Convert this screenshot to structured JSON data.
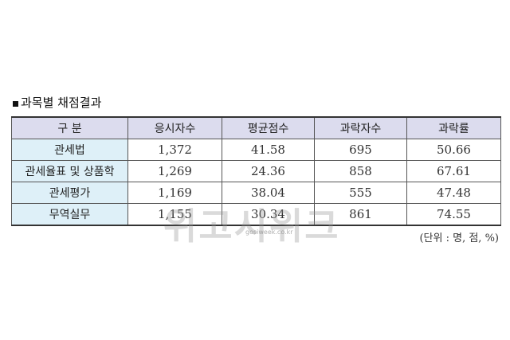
{
  "title": "과목별 채점결과",
  "table": {
    "headers": [
      "구 분",
      "응시자수",
      "평균점수",
      "과락자수",
      "과락률"
    ],
    "rows": [
      [
        "관세법",
        "1,372",
        "41.58",
        "695",
        "50.66"
      ],
      [
        "관세율표 및 상품학",
        "1,269",
        "24.36",
        "858",
        "67.61"
      ],
      [
        "관세평가",
        "1,169",
        "38.04",
        "555",
        "47.48"
      ],
      [
        "무역실무",
        "1,155",
        "30.34",
        "861",
        "74.55"
      ]
    ]
  },
  "unit_note": "(단위 : 명, 점, %)",
  "watermark": {
    "text": "위고시위크",
    "url": "gosiweek.co.kr"
  },
  "colors": {
    "header_bg": "#dcdcee",
    "label_bg": "#def0f8"
  }
}
